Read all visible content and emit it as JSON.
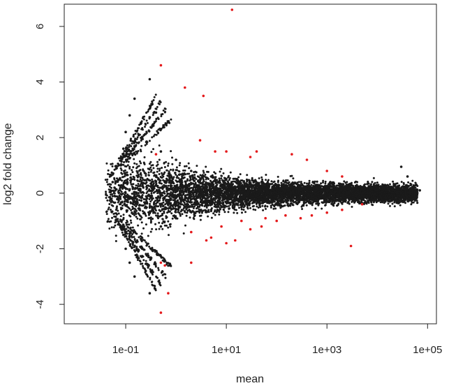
{
  "chart_data": {
    "type": "scatter",
    "title": "",
    "xlabel": "mean",
    "ylabel": "log2 fold change",
    "x_scale": "log10",
    "xlim": [
      0.006,
      150000
    ],
    "ylim": [
      -4.7,
      6.8
    ],
    "grid": false,
    "legend": "none",
    "x_ticks": [
      {
        "value": 0.1,
        "label": "1e-01"
      },
      {
        "value": 10,
        "label": "1e+01"
      },
      {
        "value": 1000,
        "label": "1e+03"
      },
      {
        "value": 100000,
        "label": "1e+05"
      }
    ],
    "y_ticks": [
      {
        "value": -4,
        "label": "-4"
      },
      {
        "value": -2,
        "label": "-2"
      },
      {
        "value": 0,
        "label": "0"
      },
      {
        "value": 2,
        "label": "2"
      },
      {
        "value": 4,
        "label": "4"
      },
      {
        "value": 6,
        "label": "6"
      }
    ],
    "colors": {
      "not_significant": "#1a1a1a",
      "significant": "#e41a1c"
    },
    "series": [
      {
        "points": [
          [
            0.05,
            0.1
          ],
          [
            0.05,
            -0.2
          ],
          [
            0.055,
            0.4
          ],
          [
            0.06,
            -0.1
          ],
          [
            0.06,
            0.2
          ],
          [
            0.08,
            1.0
          ],
          [
            0.09,
            1.6
          ],
          [
            0.1,
            2.2
          ],
          [
            0.12,
            2.8
          ],
          [
            0.15,
            3.4
          ],
          [
            0.08,
            -1.0
          ],
          [
            0.09,
            -1.5
          ],
          [
            0.1,
            -2.0
          ],
          [
            0.12,
            -2.5
          ],
          [
            0.15,
            -3.0
          ],
          [
            0.3,
            4.1
          ],
          [
            0.3,
            -3.6
          ],
          [
            0.2,
            2.5
          ],
          [
            0.25,
            -2.8
          ],
          [
            0.4,
            2.9
          ],
          [
            0.5,
            1.5
          ],
          [
            1,
            1.2
          ],
          [
            2,
            0.8
          ],
          [
            5,
            0.6
          ],
          [
            10,
            0.5
          ],
          [
            50,
            0.4
          ],
          [
            100,
            0.3
          ],
          [
            500,
            0.2
          ],
          [
            1000,
            0.2
          ],
          [
            5000,
            0.15
          ],
          [
            10000,
            0.1
          ],
          [
            30000,
            0.95
          ],
          [
            40000,
            0.6
          ],
          [
            60000,
            0.3
          ],
          [
            50000,
            -0.1
          ],
          [
            70000,
            0.1
          ],
          [
            30000,
            -0.3
          ],
          [
            20000,
            -0.2
          ],
          [
            25000,
            -0.15
          ],
          [
            35000,
            -0.25
          ],
          [
            0.5,
            -1.2
          ],
          [
            1,
            -0.9
          ],
          [
            5,
            -0.6
          ],
          [
            20,
            -0.5
          ],
          [
            100,
            -0.4
          ],
          [
            1000,
            -0.3
          ]
        ]
      },
      {
        "name": "",
        "points": [
          [
            13,
            6.6
          ],
          [
            0.5,
            4.6
          ],
          [
            1.5,
            3.8
          ],
          [
            3.5,
            3.5
          ],
          [
            0.4,
            1.4
          ],
          [
            3,
            1.9
          ],
          [
            6,
            1.5
          ],
          [
            10,
            1.5
          ],
          [
            30,
            1.3
          ],
          [
            40,
            1.5
          ],
          [
            200,
            1.4
          ],
          [
            400,
            1.2
          ],
          [
            1000,
            0.8
          ],
          [
            2000,
            0.6
          ],
          [
            0.5,
            -2.5
          ],
          [
            0.6,
            -2.6
          ],
          [
            0.7,
            -3.6
          ],
          [
            0.5,
            -4.3
          ],
          [
            2,
            -2.5
          ],
          [
            4,
            -1.7
          ],
          [
            5,
            -1.6
          ],
          [
            10,
            -1.8
          ],
          [
            15,
            -1.7
          ],
          [
            30,
            -1.3
          ],
          [
            50,
            -1.2
          ],
          [
            100,
            -1.0
          ],
          [
            300,
            -0.9
          ],
          [
            1000,
            -0.7
          ],
          [
            2000,
            -0.6
          ],
          [
            3000,
            -1.9
          ],
          [
            2,
            -1.4
          ],
          [
            8,
            -1.2
          ],
          [
            20,
            -1.0
          ],
          [
            60,
            -0.9
          ],
          [
            150,
            -0.8
          ],
          [
            500,
            -0.8
          ],
          [
            5000,
            -0.4
          ]
        ]
      }
    ]
  }
}
